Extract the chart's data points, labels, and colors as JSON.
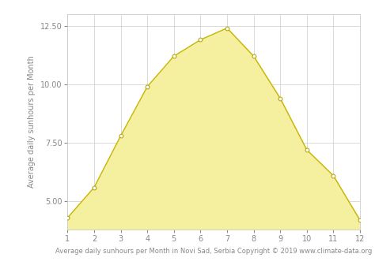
{
  "months": [
    1,
    2,
    3,
    4,
    5,
    6,
    7,
    8,
    9,
    10,
    11,
    12
  ],
  "sunhours": [
    4.3,
    5.6,
    7.8,
    9.9,
    11.2,
    11.9,
    12.4,
    11.2,
    9.4,
    7.2,
    6.1,
    4.2
  ],
  "line_color": "#c8b400",
  "fill_color": "#f5f0a0",
  "marker_color": "#ffffff",
  "marker_edge_color": "#b0a000",
  "background_color": "#ffffff",
  "grid_color": "#cccccc",
  "xlabel": "Average daily sunhours per Month in Novi Sad, Serbia Copyright © 2019 www.climate-data.org",
  "ylabel": "Average daily sunhours per Month",
  "xlim": [
    1,
    12
  ],
  "ylim": [
    3.8,
    13.0
  ],
  "yticks": [
    5.0,
    7.5,
    10.0,
    12.5
  ],
  "xticks": [
    1,
    2,
    3,
    4,
    5,
    6,
    7,
    8,
    9,
    10,
    11,
    12
  ],
  "xlabel_fontsize": 6.0,
  "ylabel_fontsize": 7.0,
  "tick_fontsize": 7.0,
  "line_width": 1.0,
  "marker_size": 3.5,
  "fill_baseline": 3.8
}
